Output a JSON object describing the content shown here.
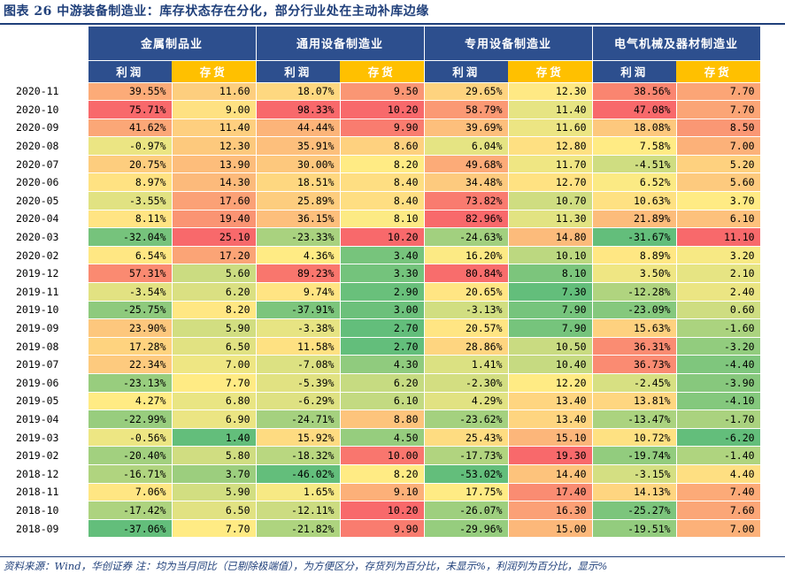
{
  "title": "图表 26   中游装备制造业：库存状态存在分化，部分行业处在主动补库边缘",
  "footer": "资料来源：Wind，华创证券   注：均为当月同比（已剔除极端值），为方便区分，存货列为百分比，未显示%，利润列为百分比，显示%",
  "header": {
    "groups": [
      "金属制品业",
      "通用设备制造业",
      "专用设备制造业",
      "电气机械及器材制造业"
    ],
    "profit_label": "利润",
    "inventory_label": "存货"
  },
  "colors": {
    "header_blue": "#2d4f8e",
    "header_gold": "#ffc000",
    "scale_low": "#63be7b",
    "scale_mid": "#ffeb84",
    "scale_high": "#f8696b"
  },
  "rows": [
    {
      "date": "2020-11",
      "v": [
        "39.55%",
        "11.60",
        "18.07%",
        "9.50",
        "29.65%",
        "12.30",
        "38.56%",
        "7.70"
      ]
    },
    {
      "date": "2020-10",
      "v": [
        "75.71%",
        "9.00",
        "98.33%",
        "10.20",
        "58.79%",
        "11.40",
        "47.08%",
        "7.70"
      ]
    },
    {
      "date": "2020-09",
      "v": [
        "41.62%",
        "11.40",
        "44.44%",
        "9.90",
        "39.69%",
        "11.60",
        "18.08%",
        "8.50"
      ]
    },
    {
      "date": "2020-08",
      "v": [
        "-0.97%",
        "12.30",
        "35.91%",
        "8.60",
        "6.04%",
        "12.80",
        "7.58%",
        "7.00"
      ]
    },
    {
      "date": "2020-07",
      "v": [
        "20.75%",
        "13.90",
        "30.00%",
        "8.20",
        "49.68%",
        "11.70",
        "-4.51%",
        "5.20"
      ]
    },
    {
      "date": "2020-06",
      "v": [
        "8.97%",
        "14.30",
        "18.51%",
        "8.40",
        "34.48%",
        "12.70",
        "6.52%",
        "5.60"
      ]
    },
    {
      "date": "2020-05",
      "v": [
        "-3.55%",
        "17.60",
        "25.89%",
        "8.40",
        "73.82%",
        "10.70",
        "10.63%",
        "3.70"
      ]
    },
    {
      "date": "2020-04",
      "v": [
        "8.11%",
        "19.40",
        "36.15%",
        "8.10",
        "82.96%",
        "11.30",
        "21.89%",
        "6.10"
      ]
    },
    {
      "date": "2020-03",
      "v": [
        "-32.04%",
        "25.10",
        "-23.33%",
        "10.20",
        "-24.63%",
        "14.80",
        "-31.67%",
        "11.10"
      ]
    },
    {
      "date": "2020-02",
      "v": [
        "6.54%",
        "17.20",
        "4.36%",
        "3.40",
        "16.20%",
        "10.10",
        "8.89%",
        "3.20"
      ]
    },
    {
      "date": "2019-12",
      "v": [
        "57.31%",
        "5.60",
        "89.23%",
        "3.30",
        "80.84%",
        "8.10",
        "3.50%",
        "2.10"
      ]
    },
    {
      "date": "2019-11",
      "v": [
        "-3.54%",
        "6.20",
        "9.74%",
        "2.90",
        "20.65%",
        "7.30",
        "-12.28%",
        "2.40"
      ]
    },
    {
      "date": "2019-10",
      "v": [
        "-25.75%",
        "8.20",
        "-37.91%",
        "3.00",
        "-3.13%",
        "7.90",
        "-23.09%",
        "0.60"
      ]
    },
    {
      "date": "2019-09",
      "v": [
        "23.90%",
        "5.90",
        "-3.38%",
        "2.70",
        "20.57%",
        "7.90",
        "15.63%",
        "-1.60"
      ]
    },
    {
      "date": "2019-08",
      "v": [
        "17.28%",
        "6.50",
        "11.58%",
        "2.70",
        "28.86%",
        "10.50",
        "36.31%",
        "-3.20"
      ]
    },
    {
      "date": "2019-07",
      "v": [
        "22.34%",
        "7.00",
        "-7.08%",
        "4.30",
        "1.41%",
        "10.40",
        "36.73%",
        "-4.40"
      ]
    },
    {
      "date": "2019-06",
      "v": [
        "-23.13%",
        "7.70",
        "-5.39%",
        "6.20",
        "-2.30%",
        "12.20",
        "-2.45%",
        "-3.90"
      ]
    },
    {
      "date": "2019-05",
      "v": [
        "4.27%",
        "6.80",
        "-6.29%",
        "6.10",
        "4.29%",
        "13.40",
        "13.81%",
        "-4.10"
      ]
    },
    {
      "date": "2019-04",
      "v": [
        "-22.99%",
        "6.90",
        "-24.71%",
        "8.80",
        "-23.62%",
        "13.40",
        "-13.47%",
        "-1.70"
      ]
    },
    {
      "date": "2019-03",
      "v": [
        "-0.56%",
        "1.40",
        "15.92%",
        "4.50",
        "25.43%",
        "15.10",
        "10.72%",
        "-6.20"
      ]
    },
    {
      "date": "2019-02",
      "v": [
        "-20.40%",
        "5.80",
        "-18.32%",
        "10.00",
        "-17.73%",
        "19.30",
        "-19.74%",
        "-1.40"
      ]
    },
    {
      "date": "2018-12",
      "v": [
        "-16.71%",
        "3.70",
        "-46.02%",
        "8.20",
        "-53.02%",
        "14.40",
        "-3.15%",
        "4.40"
      ]
    },
    {
      "date": "2018-11",
      "v": [
        "7.06%",
        "5.90",
        "1.65%",
        "9.10",
        "17.75%",
        "17.40",
        "14.13%",
        "7.40"
      ]
    },
    {
      "date": "2018-10",
      "v": [
        "-17.42%",
        "6.50",
        "-12.11%",
        "10.20",
        "-26.07%",
        "16.30",
        "-25.27%",
        "7.60"
      ]
    },
    {
      "date": "2018-09",
      "v": [
        "-37.06%",
        "7.70",
        "-21.82%",
        "9.90",
        "-29.96%",
        "15.00",
        "-19.51%",
        "7.00"
      ]
    }
  ]
}
